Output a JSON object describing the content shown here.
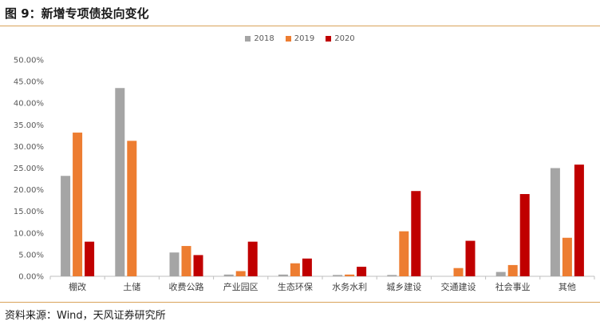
{
  "header": {
    "title": "图 9：新增专项债投向变化"
  },
  "footer": {
    "source": "资料来源：Wind，天风证券研究所"
  },
  "chart_data": {
    "type": "bar",
    "categories": [
      "棚改",
      "土储",
      "收费公路",
      "产业园区",
      "生态环保",
      "水务水利",
      "城乡建设",
      "交通建设",
      "社会事业",
      "其他"
    ],
    "series": [
      {
        "name": "2018",
        "color": "#a5a5a5",
        "values": [
          23.2,
          43.5,
          5.5,
          0.4,
          0.4,
          0.3,
          0.3,
          0.0,
          1.0,
          25.0
        ]
      },
      {
        "name": "2019",
        "color": "#ed7d31",
        "values": [
          33.2,
          31.3,
          7.0,
          1.2,
          3.0,
          0.4,
          10.4,
          1.9,
          2.6,
          8.9
        ]
      },
      {
        "name": "2020",
        "color": "#c00000",
        "values": [
          8.0,
          0.0,
          4.9,
          8.0,
          4.1,
          2.2,
          19.7,
          8.2,
          19.0,
          25.8
        ]
      }
    ],
    "ylim": [
      0,
      50
    ],
    "yticks": [
      "0.00%",
      "5.00%",
      "10.00%",
      "15.00%",
      "20.00%",
      "25.00%",
      "30.00%",
      "35.00%",
      "40.00%",
      "45.00%",
      "50.00%"
    ],
    "grid": false,
    "legend": "top-center"
  }
}
